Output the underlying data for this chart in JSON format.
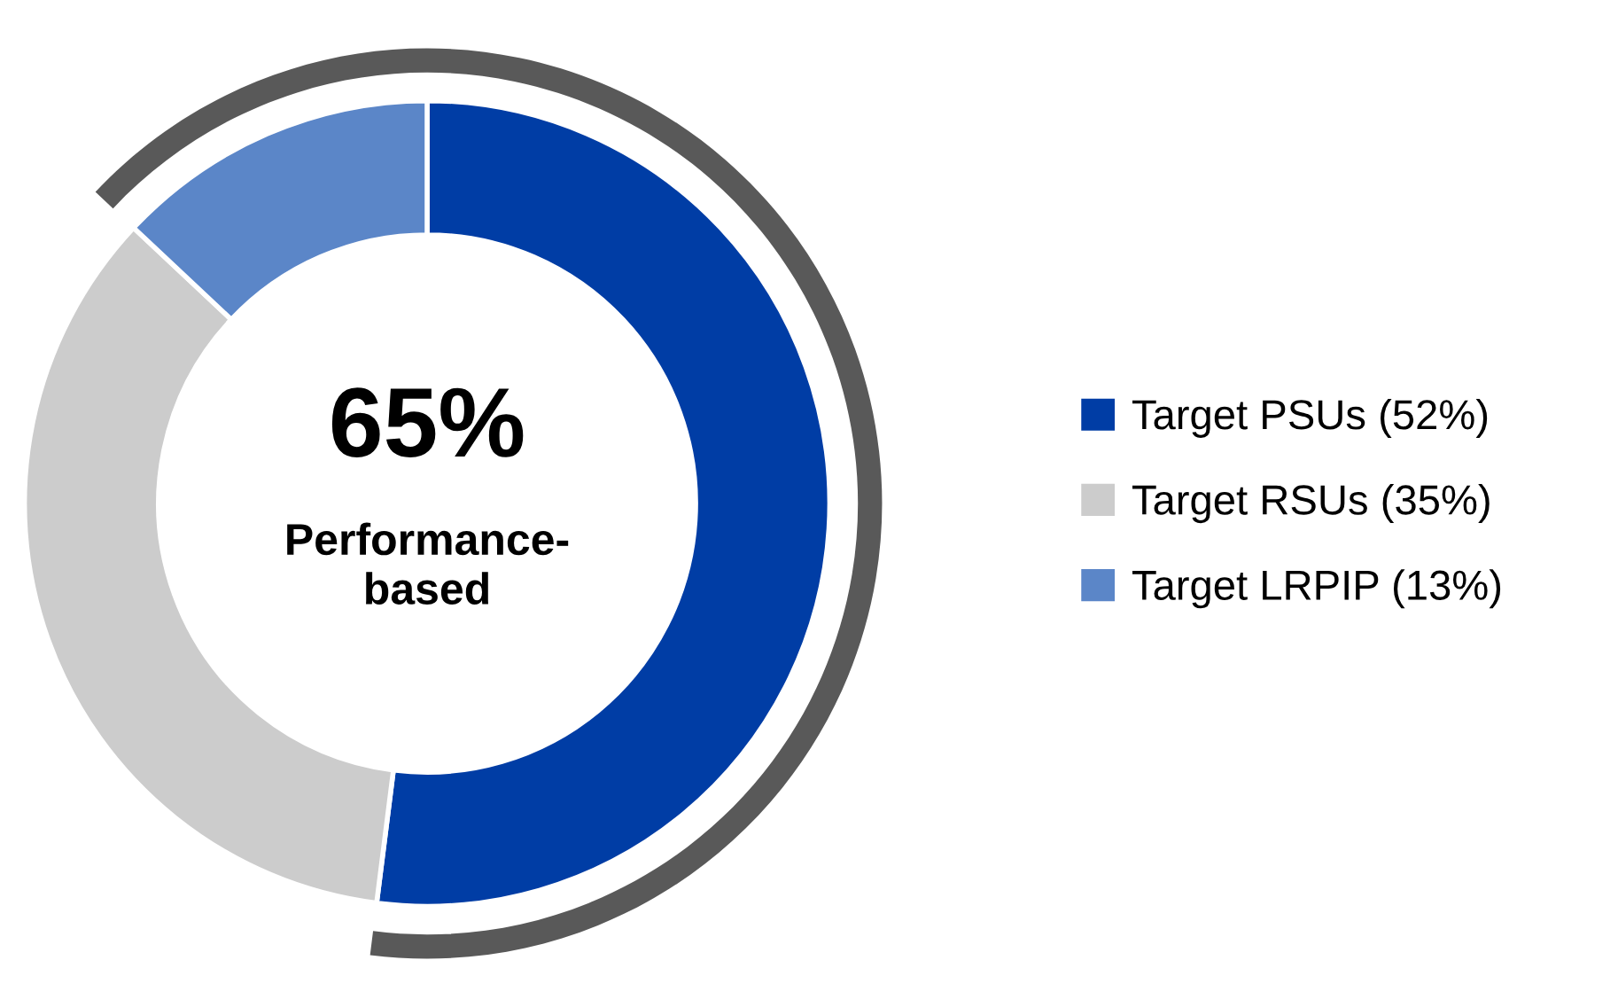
{
  "chart_data": {
    "type": "donut",
    "categories": [
      "Target PSUs (52%)",
      "Target RSUs (35%)",
      "Target LRPIP (13%)"
    ],
    "values": [
      52,
      35,
      13
    ],
    "colors": [
      "#003da5",
      "#cccccc",
      "#5b86c8"
    ],
    "annotations": [
      "65%",
      "Performance-\nbased"
    ],
    "legend": "right"
  }
}
